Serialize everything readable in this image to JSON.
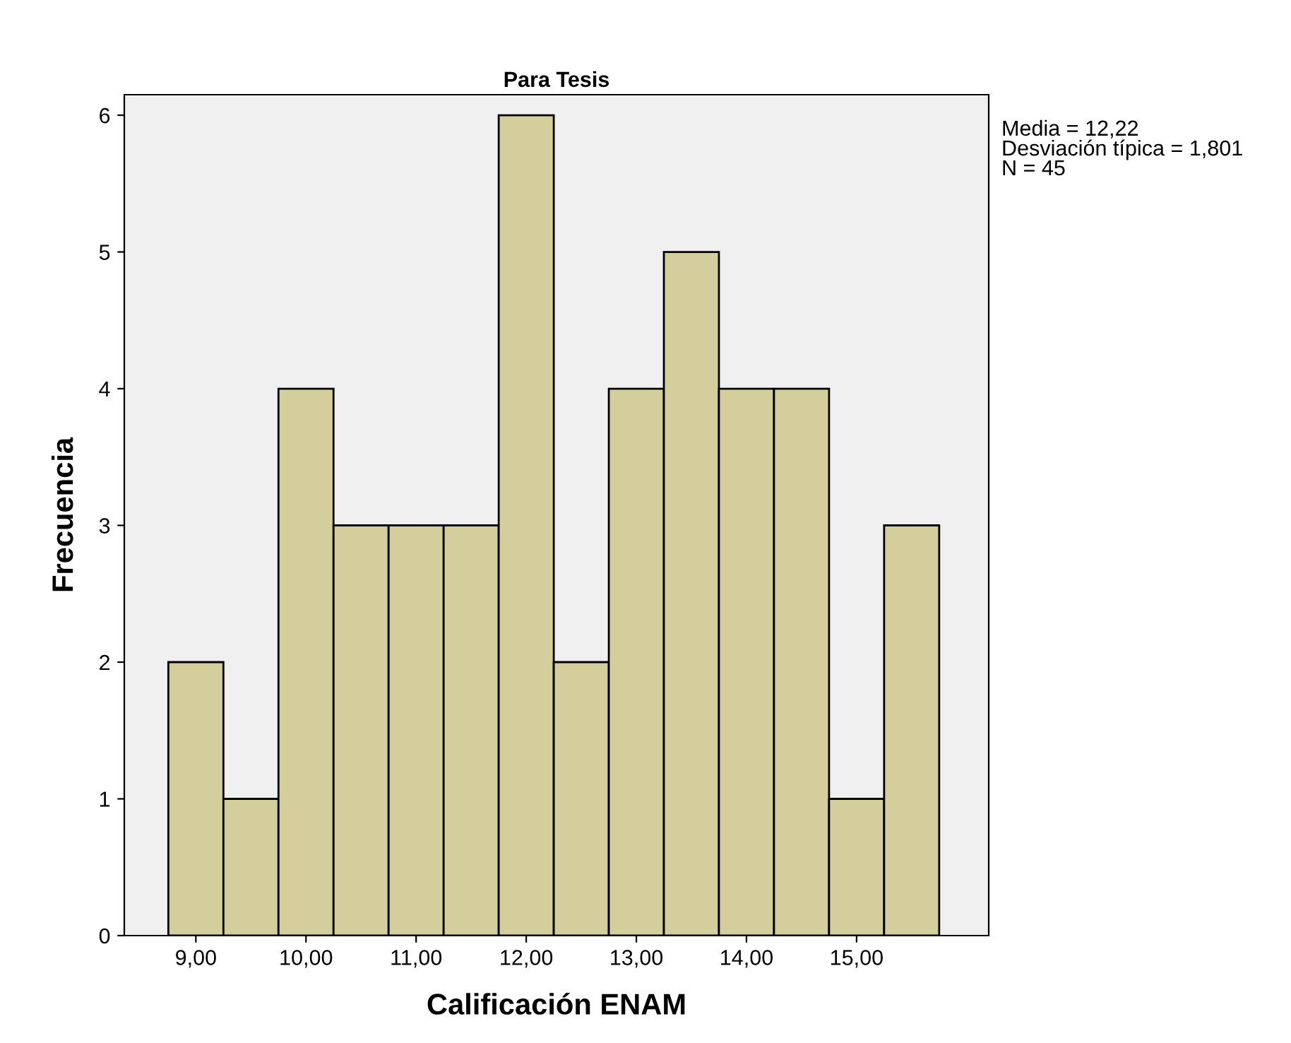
{
  "chart_data": {
    "type": "histogram",
    "title": "Para Tesis",
    "xlabel": "Calificación ENAM",
    "ylabel": "Frecuencia",
    "bins": [
      8.75,
      9.25,
      9.75,
      10.25,
      10.75,
      11.25,
      11.75,
      12.25,
      12.75,
      13.25,
      13.75,
      14.25,
      14.75,
      15.25,
      15.75
    ],
    "values": [
      2,
      1,
      4,
      3,
      3,
      3,
      6,
      2,
      4,
      5,
      4,
      4,
      1,
      3
    ],
    "color": "#d3ce9b",
    "xlim": [
      8.35,
      16.2
    ],
    "xticks": [
      {
        "value": 9,
        "label": "9,00"
      },
      {
        "value": 10,
        "label": "10,00"
      },
      {
        "value": 11,
        "label": "11,00"
      },
      {
        "value": 12,
        "label": "12,00"
      },
      {
        "value": 13,
        "label": "13,00"
      },
      {
        "value": 14,
        "label": "14,00"
      },
      {
        "value": 15,
        "label": "15,00"
      }
    ],
    "ylim": [
      0,
      6.15
    ],
    "yticks": [
      0,
      1,
      2,
      3,
      4,
      5,
      6
    ],
    "grid": false,
    "annotations": [
      "Media = 12,22",
      "Desviación típica = 1,801",
      "N = 45"
    ]
  }
}
